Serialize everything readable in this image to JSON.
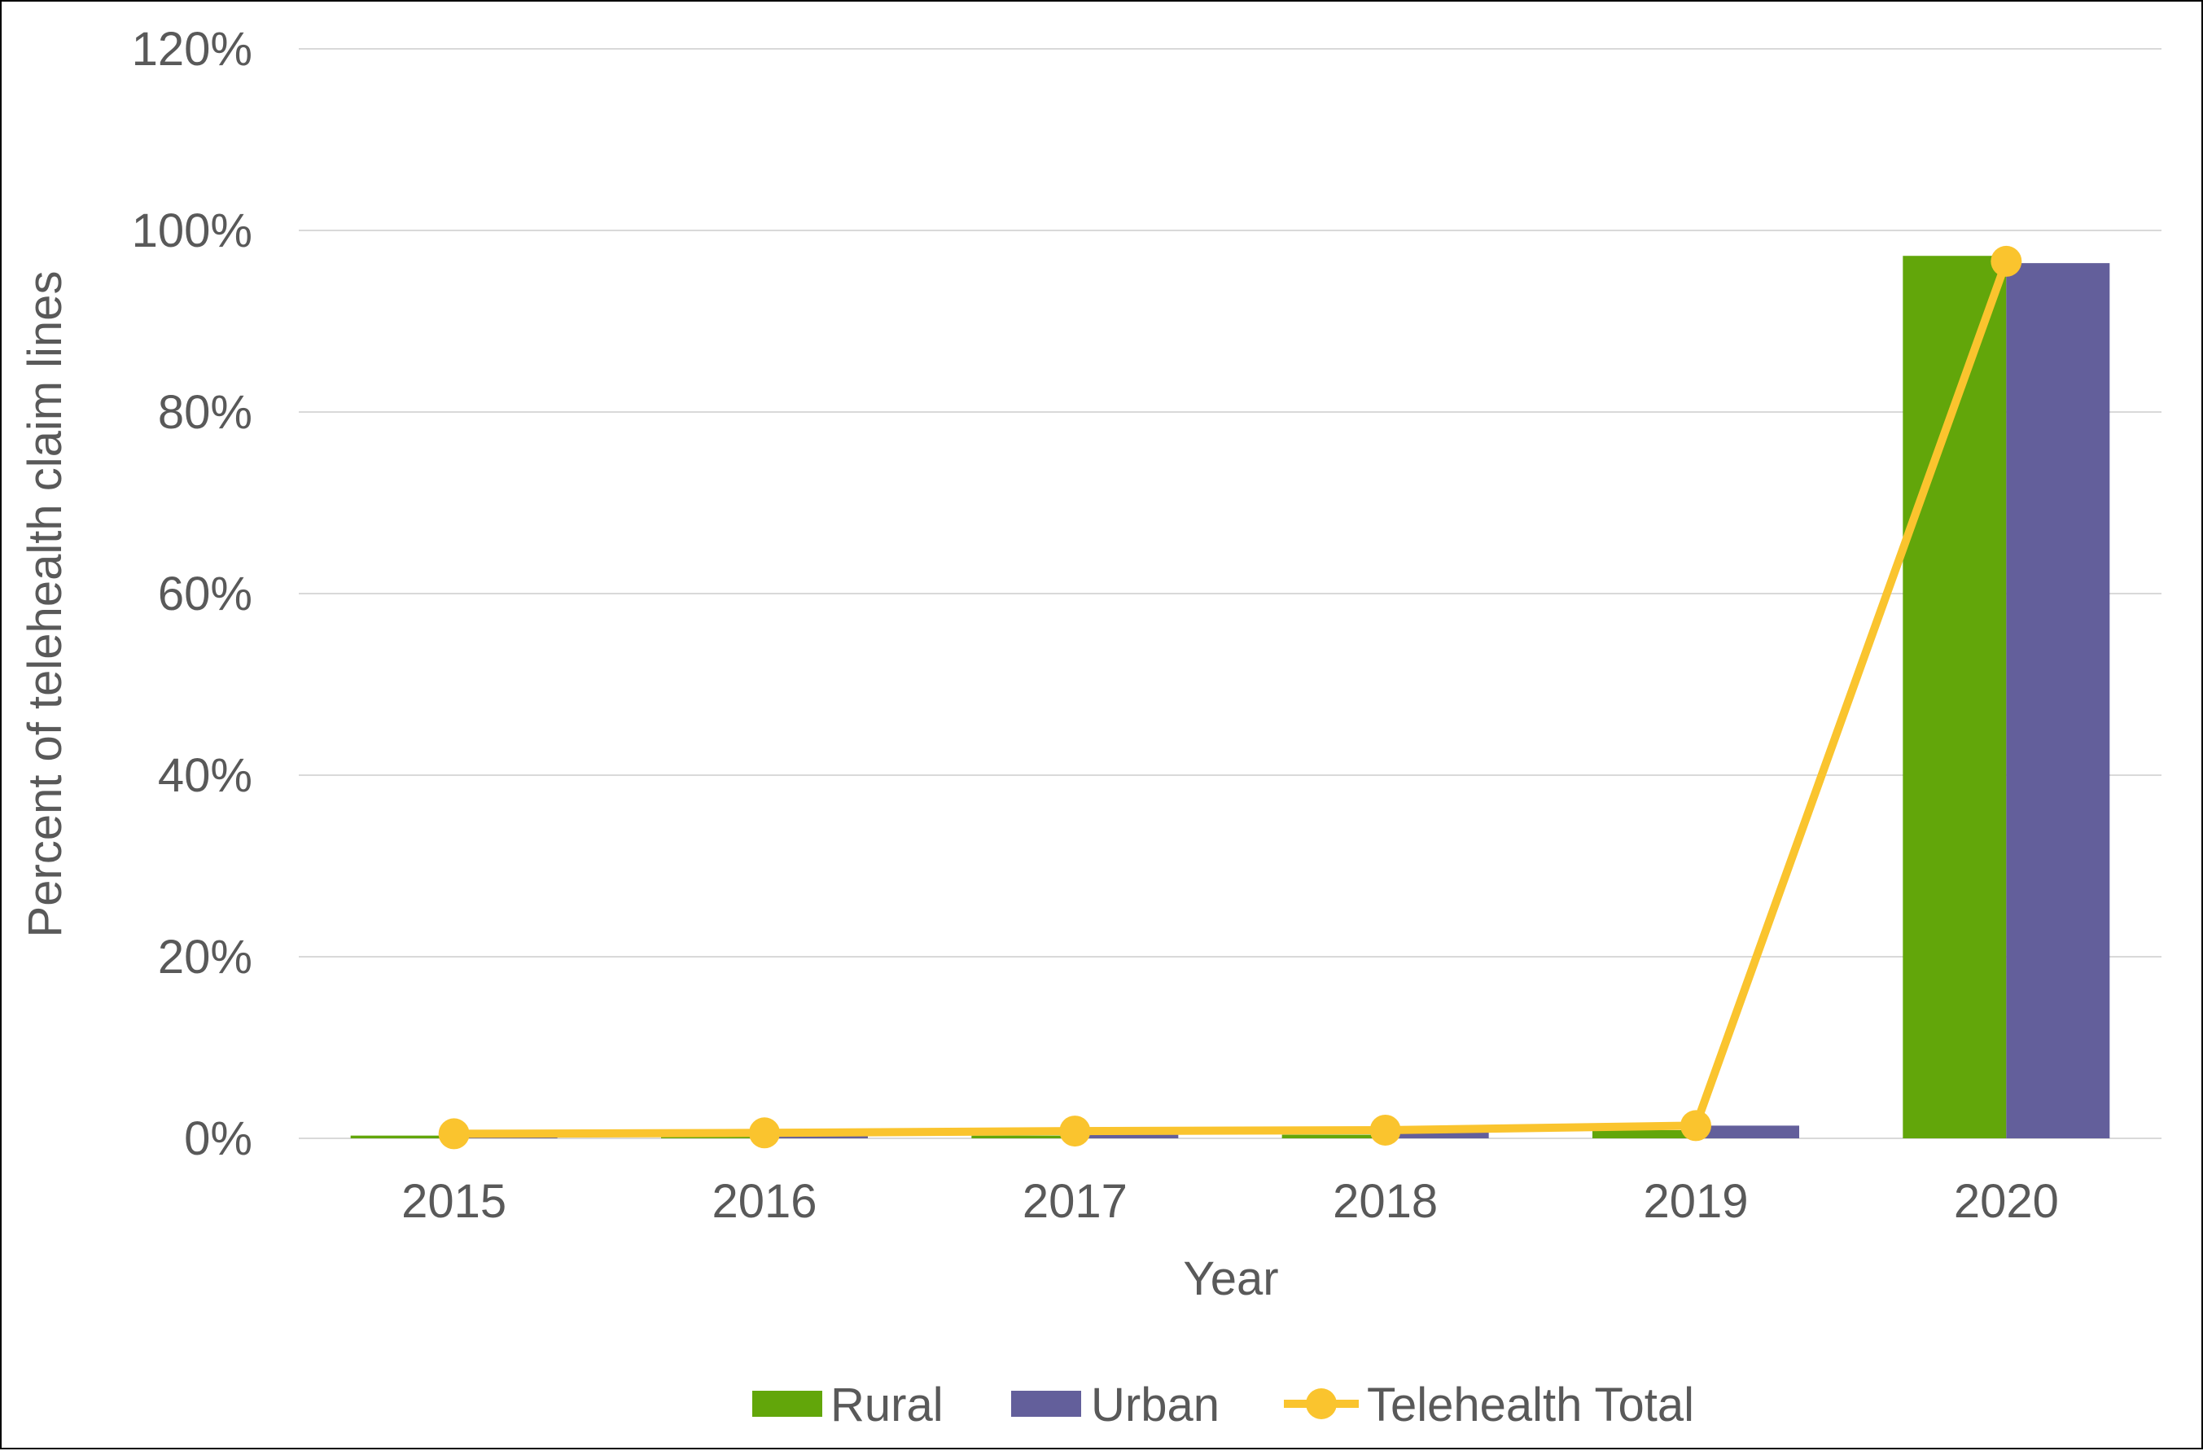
{
  "chart_data": {
    "type": "bar",
    "title": "",
    "xlabel": "Year",
    "ylabel": "Percent of telehealth claim lines",
    "categories": [
      "2015",
      "2016",
      "2017",
      "2018",
      "2019",
      "2020"
    ],
    "ylim": [
      0,
      120
    ],
    "yticks": [
      "0%",
      "20%",
      "40%",
      "60%",
      "80%",
      "100%",
      "120%"
    ],
    "ytick_values": [
      0,
      20,
      40,
      60,
      80,
      100,
      120
    ],
    "grid": true,
    "legend_position": "bottom",
    "series": [
      {
        "name": "Rural",
        "kind": "bar",
        "color": "#62A60A",
        "values": [
          0.3,
          0.2,
          0.3,
          0.4,
          0.9,
          97.2
        ]
      },
      {
        "name": "Urban",
        "kind": "bar",
        "color": "#635F9B",
        "values": [
          0.2,
          0.3,
          0.4,
          0.8,
          1.4,
          96.4
        ]
      },
      {
        "name": "Telehealth Total",
        "kind": "line",
        "color": "#FAC42E",
        "values": [
          0.5,
          0.6,
          0.8,
          0.9,
          1.4,
          96.6
        ]
      }
    ]
  }
}
